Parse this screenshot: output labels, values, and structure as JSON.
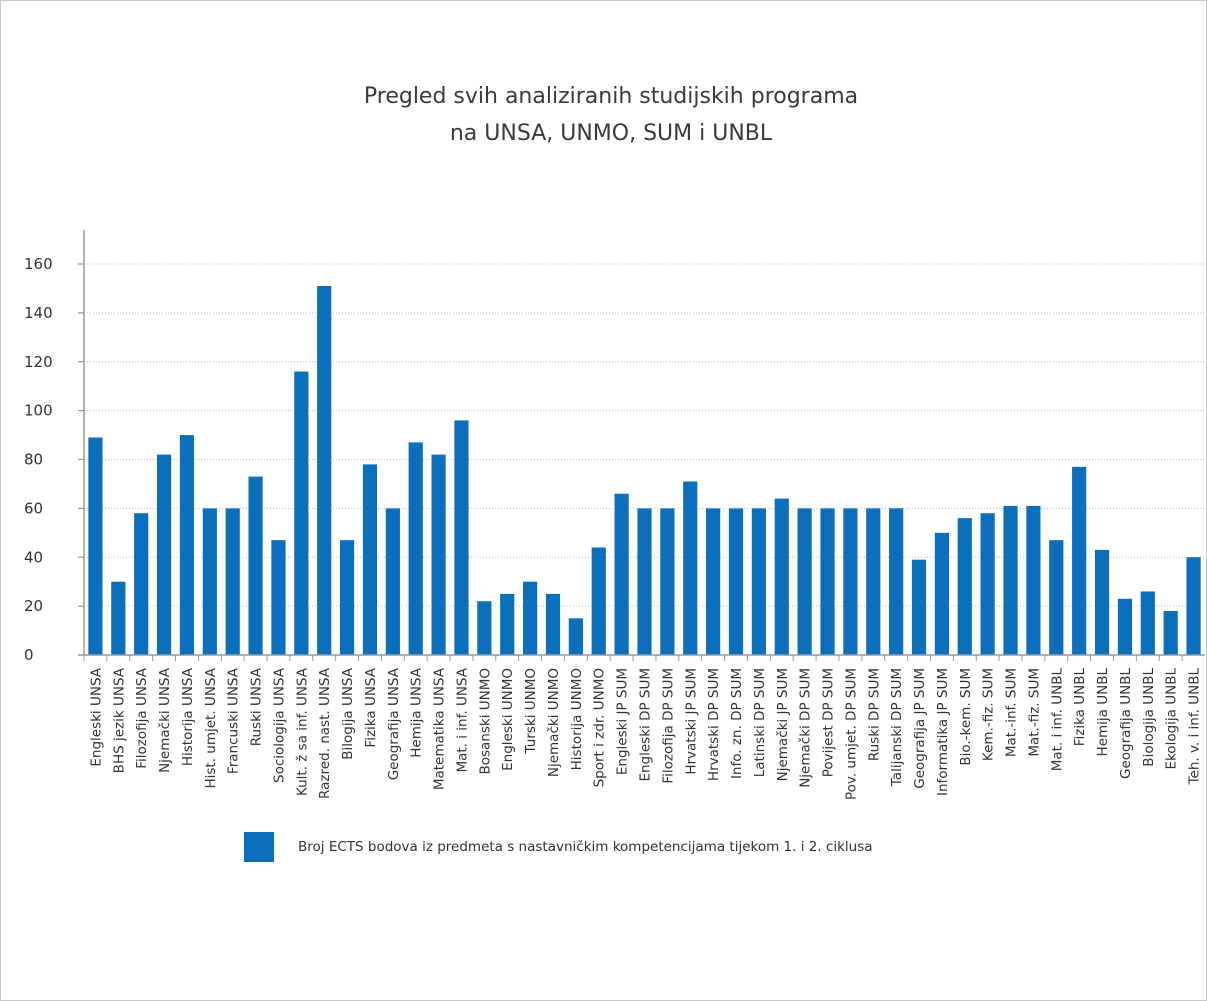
{
  "colors": {
    "bar": "#0b6fbb",
    "axis": "#999999",
    "grid": "#bfbfbf"
  },
  "chart_data": {
    "type": "bar",
    "title_lines": [
      "Pregled svih analiziranih studijskih programa",
      "na UNSA, UNMO, SUM i UNBL"
    ],
    "xlabel": "",
    "ylabel": "",
    "ylim": [
      0,
      160
    ],
    "yticks": [
      0,
      20,
      40,
      60,
      80,
      100,
      120,
      140,
      160
    ],
    "grid": true,
    "legend_position": "bottom",
    "categories": [
      "Engleski UNSA",
      "BHS jezik UNSA",
      "Filozofija UNSA",
      "Njemački UNSA",
      "Historija UNSA",
      "Hist. umjet. UNSA",
      "Francuski UNSA",
      "Ruski UNSA",
      "Sociologija UNSA",
      "Kult. ž sa inf. UNSA",
      "Razred. nast. UNSA",
      "Bilogija UNSA",
      "Fizika UNSA",
      "Geografija UNSA",
      "Hemija UNSA",
      "Matematika UNSA",
      "Mat. i inf. UNSA",
      "Bosanski UNMO",
      "Engleski UNMO",
      "Turski UNMO",
      "Njemački UNMO",
      "Historija UNMO",
      "Sport i zdr. UNMO",
      "Engleski JP SUM",
      "Engleski DP SUM",
      "Filozofija DP SUM",
      "Hrvatski JP SUM",
      "Hrvatski DP SUM",
      "Info. zn. DP SUM",
      "Latinski DP SUM",
      "Njemački JP SUM",
      "Njemački DP SUM",
      "Povijest DP SUM",
      "Pov. umjet. DP SUM",
      "Ruski DP SUM",
      "Talijanski DP SUM",
      "Geografija JP SUM",
      "Informatika JP SUM",
      "Bio.-kem. SUM",
      "Kem.-fiz. SUM",
      "Mat.-inf. SUM",
      "Mat.-fiz. SUM",
      "Mat. i inf. UNBL",
      "Fizika UNBL",
      "Hemija UNBL",
      "Geografija UNBL",
      "Biologija UNBL",
      "Ekologija UNBL",
      "Teh. v. i inf. UNBL"
    ],
    "series": [
      {
        "name": "Broj ECTS bodova iz predmeta s nastavničkim kompetencijama tijekom 1. i 2. ciklusa",
        "values": [
          89,
          30,
          58,
          82,
          90,
          60,
          60,
          73,
          47,
          116,
          151,
          47,
          78,
          60,
          87,
          82,
          96,
          22,
          25,
          30,
          25,
          15,
          44,
          66,
          60,
          60,
          71,
          60,
          60,
          60,
          64,
          60,
          60,
          60,
          60,
          60,
          39,
          50,
          56,
          58,
          61,
          61,
          47,
          77,
          43,
          23,
          26,
          18,
          40
        ]
      }
    ]
  }
}
